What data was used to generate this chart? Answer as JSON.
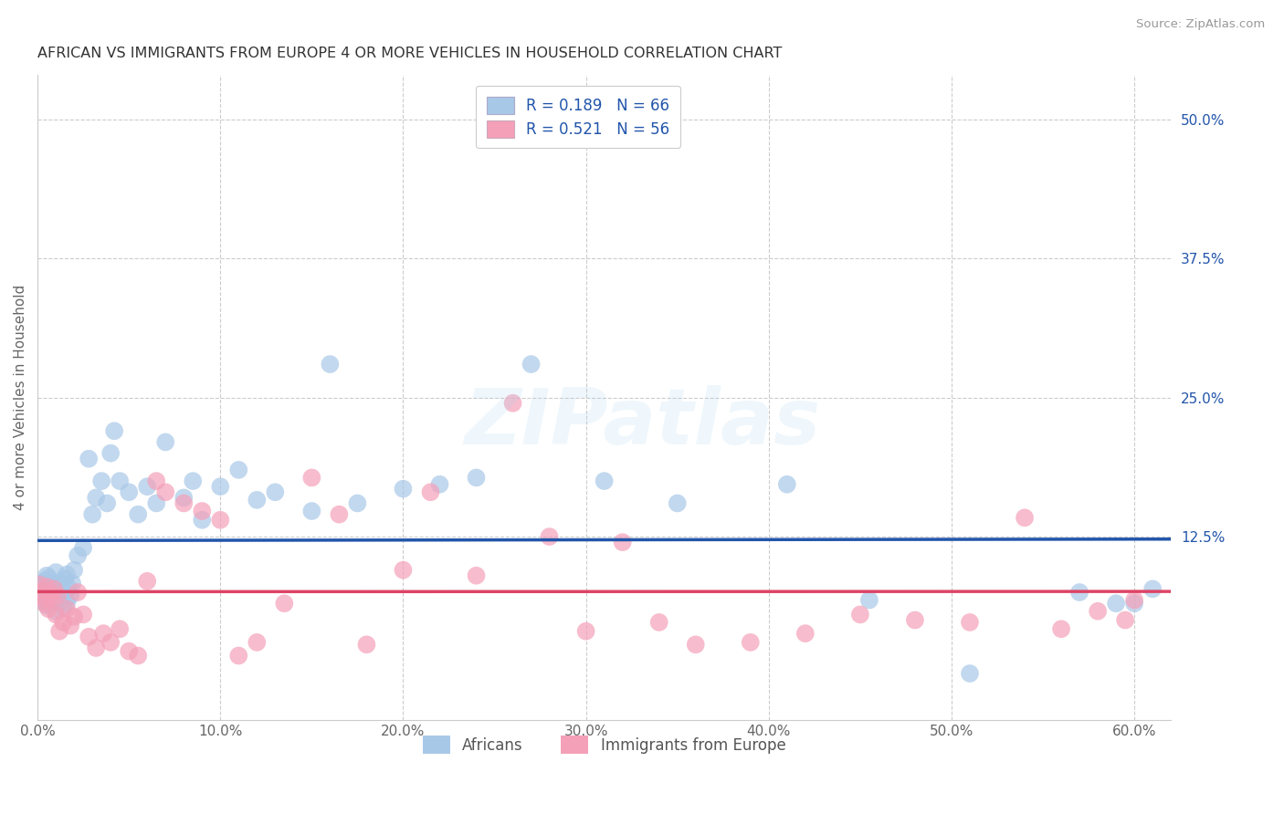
{
  "title": "AFRICAN VS IMMIGRANTS FROM EUROPE 4 OR MORE VEHICLES IN HOUSEHOLD CORRELATION CHART",
  "source": "Source: ZipAtlas.com",
  "xlabel_ticks": [
    "0.0%",
    "10.0%",
    "20.0%",
    "30.0%",
    "40.0%",
    "50.0%",
    "60.0%"
  ],
  "xlabel_vals": [
    0.0,
    0.1,
    0.2,
    0.3,
    0.4,
    0.5,
    0.6
  ],
  "ylabel_ticks": [
    "12.5%",
    "25.0%",
    "37.5%",
    "50.0%"
  ],
  "ylabel_vals": [
    0.125,
    0.25,
    0.375,
    0.5
  ],
  "ylabel_label": "4 or more Vehicles in Household",
  "legend1_label": "R = 0.189   N = 66",
  "legend2_label": "R = 0.521   N = 56",
  "legend_africans": "Africans",
  "legend_europe": "Immigrants from Europe",
  "african_color": "#a8c8e8",
  "europe_color": "#f4a0b8",
  "african_line_color": "#2255aa",
  "europe_line_color": "#dd4466",
  "xlim": [
    0.0,
    0.62
  ],
  "ylim": [
    -0.04,
    0.54
  ],
  "african_x": [
    0.001,
    0.002,
    0.003,
    0.003,
    0.004,
    0.004,
    0.005,
    0.005,
    0.006,
    0.006,
    0.007,
    0.007,
    0.008,
    0.009,
    0.01,
    0.01,
    0.011,
    0.012,
    0.013,
    0.014,
    0.015,
    0.015,
    0.016,
    0.016,
    0.017,
    0.018,
    0.019,
    0.02,
    0.022,
    0.025,
    0.028,
    0.03,
    0.032,
    0.035,
    0.038,
    0.04,
    0.042,
    0.045,
    0.05,
    0.055,
    0.06,
    0.065,
    0.07,
    0.08,
    0.085,
    0.09,
    0.1,
    0.11,
    0.12,
    0.13,
    0.15,
    0.16,
    0.175,
    0.2,
    0.22,
    0.24,
    0.27,
    0.31,
    0.35,
    0.41,
    0.455,
    0.51,
    0.57,
    0.59,
    0.6,
    0.61
  ],
  "african_y": [
    0.082,
    0.075,
    0.068,
    0.078,
    0.072,
    0.085,
    0.063,
    0.09,
    0.07,
    0.088,
    0.076,
    0.065,
    0.08,
    0.073,
    0.058,
    0.093,
    0.069,
    0.084,
    0.077,
    0.061,
    0.087,
    0.074,
    0.066,
    0.091,
    0.079,
    0.072,
    0.083,
    0.095,
    0.108,
    0.115,
    0.195,
    0.145,
    0.16,
    0.175,
    0.155,
    0.2,
    0.22,
    0.175,
    0.165,
    0.145,
    0.17,
    0.155,
    0.21,
    0.16,
    0.175,
    0.14,
    0.17,
    0.185,
    0.158,
    0.165,
    0.148,
    0.28,
    0.155,
    0.168,
    0.172,
    0.178,
    0.28,
    0.175,
    0.155,
    0.172,
    0.068,
    0.002,
    0.075,
    0.065,
    0.065,
    0.078
  ],
  "europe_x": [
    0.001,
    0.002,
    0.003,
    0.004,
    0.005,
    0.006,
    0.007,
    0.008,
    0.009,
    0.01,
    0.011,
    0.012,
    0.014,
    0.016,
    0.018,
    0.02,
    0.022,
    0.025,
    0.028,
    0.032,
    0.036,
    0.04,
    0.045,
    0.05,
    0.055,
    0.06,
    0.065,
    0.07,
    0.08,
    0.09,
    0.1,
    0.11,
    0.12,
    0.135,
    0.15,
    0.165,
    0.18,
    0.2,
    0.215,
    0.24,
    0.26,
    0.28,
    0.3,
    0.32,
    0.34,
    0.36,
    0.39,
    0.42,
    0.45,
    0.48,
    0.51,
    0.54,
    0.56,
    0.58,
    0.595,
    0.6
  ],
  "europe_y": [
    0.082,
    0.075,
    0.07,
    0.065,
    0.08,
    0.06,
    0.073,
    0.068,
    0.078,
    0.055,
    0.072,
    0.04,
    0.048,
    0.06,
    0.045,
    0.053,
    0.075,
    0.055,
    0.035,
    0.025,
    0.038,
    0.03,
    0.042,
    0.022,
    0.018,
    0.085,
    0.175,
    0.165,
    0.155,
    0.148,
    0.14,
    0.018,
    0.03,
    0.065,
    0.178,
    0.145,
    0.028,
    0.095,
    0.165,
    0.09,
    0.245,
    0.125,
    0.04,
    0.12,
    0.048,
    0.028,
    0.03,
    0.038,
    0.055,
    0.05,
    0.048,
    0.142,
    0.042,
    0.058,
    0.05,
    0.068
  ]
}
